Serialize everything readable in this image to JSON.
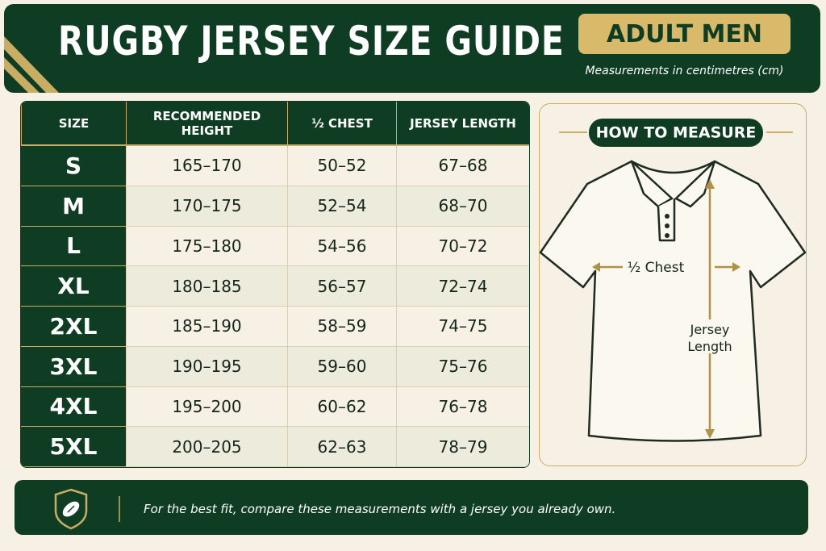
{
  "header": {
    "title": "RUGBY JERSEY SIZE GUIDE",
    "badge": "ADULT MEN",
    "subtitle": "Measurements in centimetres (cm)"
  },
  "table": {
    "columns": [
      "SIZE",
      "RECOMMENDED HEIGHT",
      "½ CHEST",
      "JERSEY LENGTH"
    ],
    "rows": [
      [
        "S",
        "165–170",
        "50–52",
        "67–68"
      ],
      [
        "M",
        "170–175",
        "52–54",
        "68–70"
      ],
      [
        "L",
        "175–180",
        "54–56",
        "70–72"
      ],
      [
        "XL",
        "180–185",
        "56–57",
        "72–74"
      ],
      [
        "2XL",
        "185–190",
        "58–59",
        "74–75"
      ],
      [
        "3XL",
        "190–195",
        "59–60",
        "75–76"
      ],
      [
        "4XL",
        "195–200",
        "60–62",
        "76–78"
      ],
      [
        "5XL",
        "200–205",
        "62–63",
        "78–79"
      ]
    ]
  },
  "diagram": {
    "title": "HOW TO MEASURE",
    "chest_label": "½ Chest",
    "length_label": "Jersey Length"
  },
  "footer": {
    "note": "For the best fit, compare these measurements with a jersey you already own."
  }
}
